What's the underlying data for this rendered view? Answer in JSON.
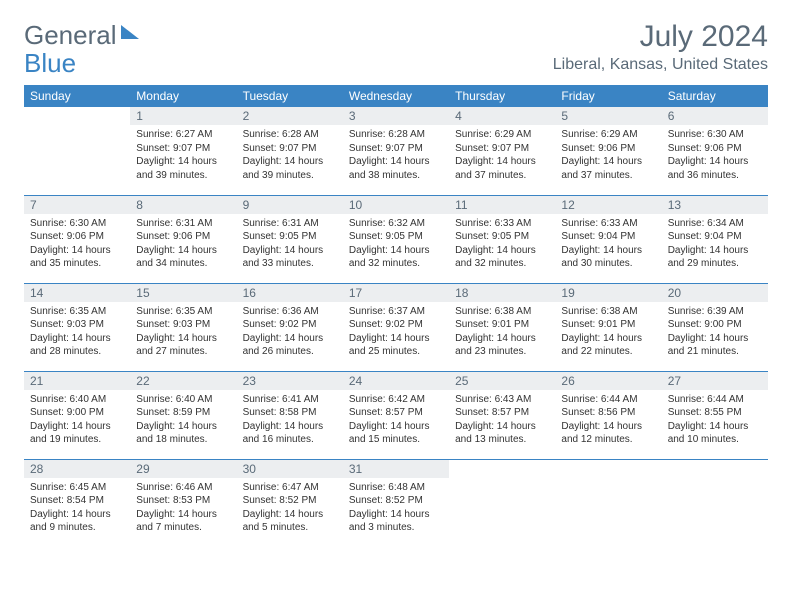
{
  "logo": {
    "part1": "General",
    "part2": "Blue"
  },
  "title": "July 2024",
  "location": "Liberal, Kansas, United States",
  "colors": {
    "header_bg": "#3a84c4",
    "header_fg": "#ffffff",
    "daynum_bg": "#eceef0",
    "daynum_fg": "#5a6a78",
    "text": "#333333",
    "rule": "#3a84c4",
    "title_fg": "#5a6a78"
  },
  "weekdays": [
    "Sunday",
    "Monday",
    "Tuesday",
    "Wednesday",
    "Thursday",
    "Friday",
    "Saturday"
  ],
  "weeks": [
    [
      null,
      {
        "n": "1",
        "sr": "6:27 AM",
        "ss": "9:07 PM",
        "dl": "14 hours and 39 minutes."
      },
      {
        "n": "2",
        "sr": "6:28 AM",
        "ss": "9:07 PM",
        "dl": "14 hours and 39 minutes."
      },
      {
        "n": "3",
        "sr": "6:28 AM",
        "ss": "9:07 PM",
        "dl": "14 hours and 38 minutes."
      },
      {
        "n": "4",
        "sr": "6:29 AM",
        "ss": "9:07 PM",
        "dl": "14 hours and 37 minutes."
      },
      {
        "n": "5",
        "sr": "6:29 AM",
        "ss": "9:06 PM",
        "dl": "14 hours and 37 minutes."
      },
      {
        "n": "6",
        "sr": "6:30 AM",
        "ss": "9:06 PM",
        "dl": "14 hours and 36 minutes."
      }
    ],
    [
      {
        "n": "7",
        "sr": "6:30 AM",
        "ss": "9:06 PM",
        "dl": "14 hours and 35 minutes."
      },
      {
        "n": "8",
        "sr": "6:31 AM",
        "ss": "9:06 PM",
        "dl": "14 hours and 34 minutes."
      },
      {
        "n": "9",
        "sr": "6:31 AM",
        "ss": "9:05 PM",
        "dl": "14 hours and 33 minutes."
      },
      {
        "n": "10",
        "sr": "6:32 AM",
        "ss": "9:05 PM",
        "dl": "14 hours and 32 minutes."
      },
      {
        "n": "11",
        "sr": "6:33 AM",
        "ss": "9:05 PM",
        "dl": "14 hours and 32 minutes."
      },
      {
        "n": "12",
        "sr": "6:33 AM",
        "ss": "9:04 PM",
        "dl": "14 hours and 30 minutes."
      },
      {
        "n": "13",
        "sr": "6:34 AM",
        "ss": "9:04 PM",
        "dl": "14 hours and 29 minutes."
      }
    ],
    [
      {
        "n": "14",
        "sr": "6:35 AM",
        "ss": "9:03 PM",
        "dl": "14 hours and 28 minutes."
      },
      {
        "n": "15",
        "sr": "6:35 AM",
        "ss": "9:03 PM",
        "dl": "14 hours and 27 minutes."
      },
      {
        "n": "16",
        "sr": "6:36 AM",
        "ss": "9:02 PM",
        "dl": "14 hours and 26 minutes."
      },
      {
        "n": "17",
        "sr": "6:37 AM",
        "ss": "9:02 PM",
        "dl": "14 hours and 25 minutes."
      },
      {
        "n": "18",
        "sr": "6:38 AM",
        "ss": "9:01 PM",
        "dl": "14 hours and 23 minutes."
      },
      {
        "n": "19",
        "sr": "6:38 AM",
        "ss": "9:01 PM",
        "dl": "14 hours and 22 minutes."
      },
      {
        "n": "20",
        "sr": "6:39 AM",
        "ss": "9:00 PM",
        "dl": "14 hours and 21 minutes."
      }
    ],
    [
      {
        "n": "21",
        "sr": "6:40 AM",
        "ss": "9:00 PM",
        "dl": "14 hours and 19 minutes."
      },
      {
        "n": "22",
        "sr": "6:40 AM",
        "ss": "8:59 PM",
        "dl": "14 hours and 18 minutes."
      },
      {
        "n": "23",
        "sr": "6:41 AM",
        "ss": "8:58 PM",
        "dl": "14 hours and 16 minutes."
      },
      {
        "n": "24",
        "sr": "6:42 AM",
        "ss": "8:57 PM",
        "dl": "14 hours and 15 minutes."
      },
      {
        "n": "25",
        "sr": "6:43 AM",
        "ss": "8:57 PM",
        "dl": "14 hours and 13 minutes."
      },
      {
        "n": "26",
        "sr": "6:44 AM",
        "ss": "8:56 PM",
        "dl": "14 hours and 12 minutes."
      },
      {
        "n": "27",
        "sr": "6:44 AM",
        "ss": "8:55 PM",
        "dl": "14 hours and 10 minutes."
      }
    ],
    [
      {
        "n": "28",
        "sr": "6:45 AM",
        "ss": "8:54 PM",
        "dl": "14 hours and 9 minutes."
      },
      {
        "n": "29",
        "sr": "6:46 AM",
        "ss": "8:53 PM",
        "dl": "14 hours and 7 minutes."
      },
      {
        "n": "30",
        "sr": "6:47 AM",
        "ss": "8:52 PM",
        "dl": "14 hours and 5 minutes."
      },
      {
        "n": "31",
        "sr": "6:48 AM",
        "ss": "8:52 PM",
        "dl": "14 hours and 3 minutes."
      },
      null,
      null,
      null
    ]
  ],
  "labels": {
    "sunrise": "Sunrise:",
    "sunset": "Sunset:",
    "daylight": "Daylight:"
  }
}
